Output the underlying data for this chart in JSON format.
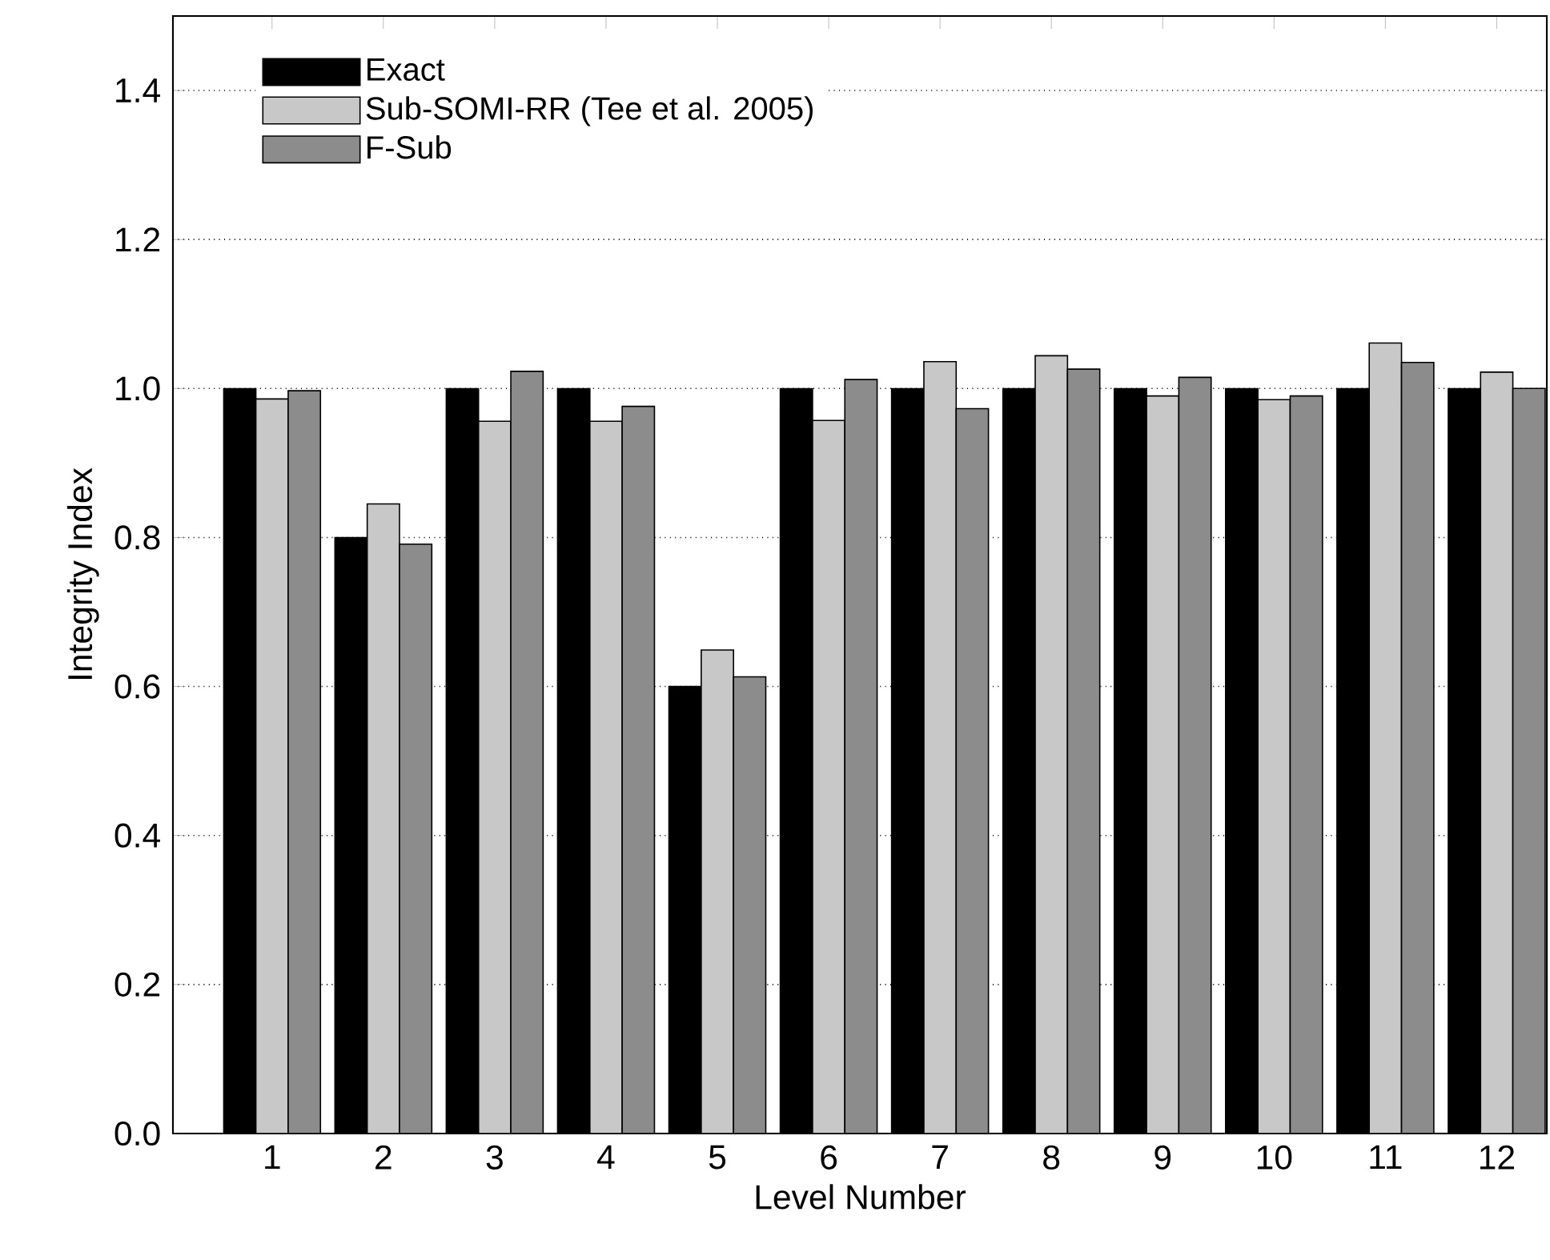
{
  "chart_data": {
    "type": "bar",
    "xlabel": "Level Number",
    "ylabel": "Integrity Index",
    "categories": [
      "1",
      "2",
      "3",
      "4",
      "5",
      "6",
      "7",
      "8",
      "9",
      "10",
      "11",
      "12"
    ],
    "series": [
      {
        "name": "Exact",
        "color": "#000000",
        "values": [
          1.0,
          0.8,
          1.0,
          1.0,
          0.6,
          1.0,
          1.0,
          1.0,
          1.0,
          1.0,
          1.0,
          1.0
        ]
      },
      {
        "name": "Sub-SOMI-RR (Tee et al. 2005)",
        "color": "#c8c8c8",
        "values": [
          0.986,
          0.845,
          0.956,
          0.956,
          0.649,
          0.957,
          1.036,
          1.044,
          0.99,
          0.985,
          1.061,
          1.022
        ]
      },
      {
        "name": "F-Sub",
        "color": "#8c8c8c",
        "values": [
          0.997,
          0.791,
          1.023,
          0.976,
          0.613,
          1.012,
          0.973,
          1.026,
          1.015,
          0.99,
          1.035,
          1.0
        ]
      }
    ],
    "ylim": [
      0,
      1.5
    ],
    "yticks": [
      {
        "value": 0,
        "label": "0.0"
      },
      {
        "value": 0.2,
        "label": "0.2"
      },
      {
        "value": 0.4,
        "label": "0.4"
      },
      {
        "value": 0.6,
        "label": "0.6"
      },
      {
        "value": 0.8,
        "label": "0.8"
      },
      {
        "value": 1.0,
        "label": "1.0"
      },
      {
        "value": 1.2,
        "label": "1.2"
      },
      {
        "value": 1.4,
        "label": "1.4"
      }
    ],
    "grid": "y",
    "legend": "top left"
  }
}
